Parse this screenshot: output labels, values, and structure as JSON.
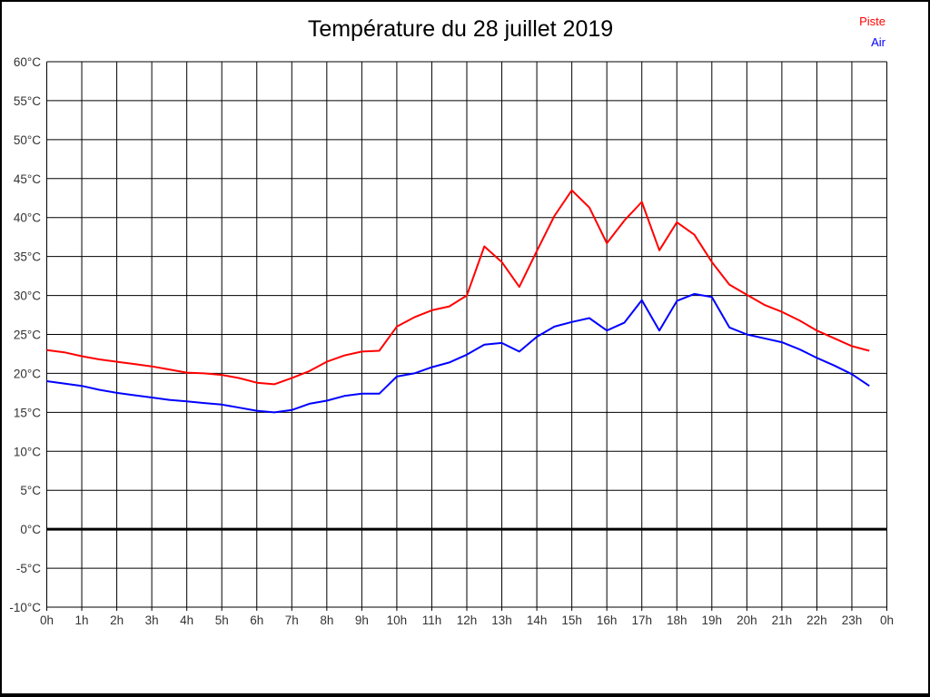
{
  "title": "Température du 28 juillet 2019",
  "legend": {
    "position": "top-right",
    "items": [
      {
        "label": "Piste",
        "color": "#ff0000"
      },
      {
        "label": "Air",
        "color": "#0000ff"
      }
    ]
  },
  "chart_data": {
    "type": "line",
    "title": "Température du 28 juillet 2019",
    "xlabel": "",
    "ylabel": "",
    "xlim": [
      0,
      24
    ],
    "ylim": [
      -10,
      60
    ],
    "grid": true,
    "zero_line": true,
    "zero_line_color": "#000000",
    "grid_color": "#000000",
    "xtick_labels": [
      "0h",
      "1h",
      "2h",
      "3h",
      "4h",
      "5h",
      "6h",
      "7h",
      "8h",
      "9h",
      "10h",
      "11h",
      "12h",
      "13h",
      "14h",
      "15h",
      "16h",
      "17h",
      "18h",
      "19h",
      "20h",
      "21h",
      "22h",
      "23h",
      "0h"
    ],
    "ytick_labels": [
      "60°C",
      "55°C",
      "50°C",
      "45°C",
      "40°C",
      "35°C",
      "30°C",
      "25°C",
      "20°C",
      "15°C",
      "10°C",
      "5°C",
      "0°C",
      "-5°C",
      "-10°C"
    ],
    "ytick_values": [
      60,
      55,
      50,
      45,
      40,
      35,
      30,
      25,
      20,
      15,
      10,
      5,
      0,
      -5,
      -10
    ],
    "x_unit": "hours",
    "x": [
      0,
      0.5,
      1,
      1.5,
      2,
      2.5,
      3,
      3.5,
      4,
      4.5,
      5,
      5.5,
      6,
      6.5,
      7,
      7.5,
      8,
      8.5,
      9,
      9.5,
      10,
      10.5,
      11,
      11.5,
      12,
      12.5,
      13,
      13.5,
      14,
      14.5,
      15,
      15.5,
      16,
      16.5,
      17,
      17.5,
      18,
      18.5,
      19,
      19.5,
      20,
      20.5,
      21,
      21.5,
      22,
      22.5,
      23,
      23.5
    ],
    "series": [
      {
        "name": "Piste",
        "color": "#ff0000",
        "values": [
          23,
          22.7,
          22.2,
          21.8,
          21.5,
          21.2,
          20.9,
          20.5,
          20.1,
          20,
          19.8,
          19.4,
          18.8,
          18.6,
          19.4,
          20.3,
          21.5,
          22.3,
          22.8,
          22.9,
          26,
          27.2,
          28.1,
          28.6,
          30,
          36.3,
          34.3,
          31.1,
          35.7,
          40.2,
          43.5,
          41.3,
          36.7,
          39.6,
          42,
          35.8,
          39.4,
          37.8,
          34.3,
          31.4,
          30.1,
          28.8,
          27.9,
          26.8,
          25.5,
          24.5,
          23.5,
          22.9
        ]
      },
      {
        "name": "Air",
        "color": "#0000ff",
        "values": [
          19,
          18.7,
          18.4,
          17.9,
          17.5,
          17.2,
          16.9,
          16.6,
          16.4,
          16.2,
          16,
          15.6,
          15.2,
          15,
          15.3,
          16.1,
          16.5,
          17.1,
          17.4,
          17.4,
          19.6,
          20,
          20.8,
          21.4,
          22.4,
          23.7,
          23.9,
          22.8,
          24.7,
          26,
          26.6,
          27.1,
          25.5,
          26.5,
          29.4,
          25.5,
          29.3,
          30.2,
          29.8,
          25.9,
          25,
          24.5,
          24,
          23.1,
          22,
          21,
          19.9,
          18.4
        ]
      }
    ]
  }
}
